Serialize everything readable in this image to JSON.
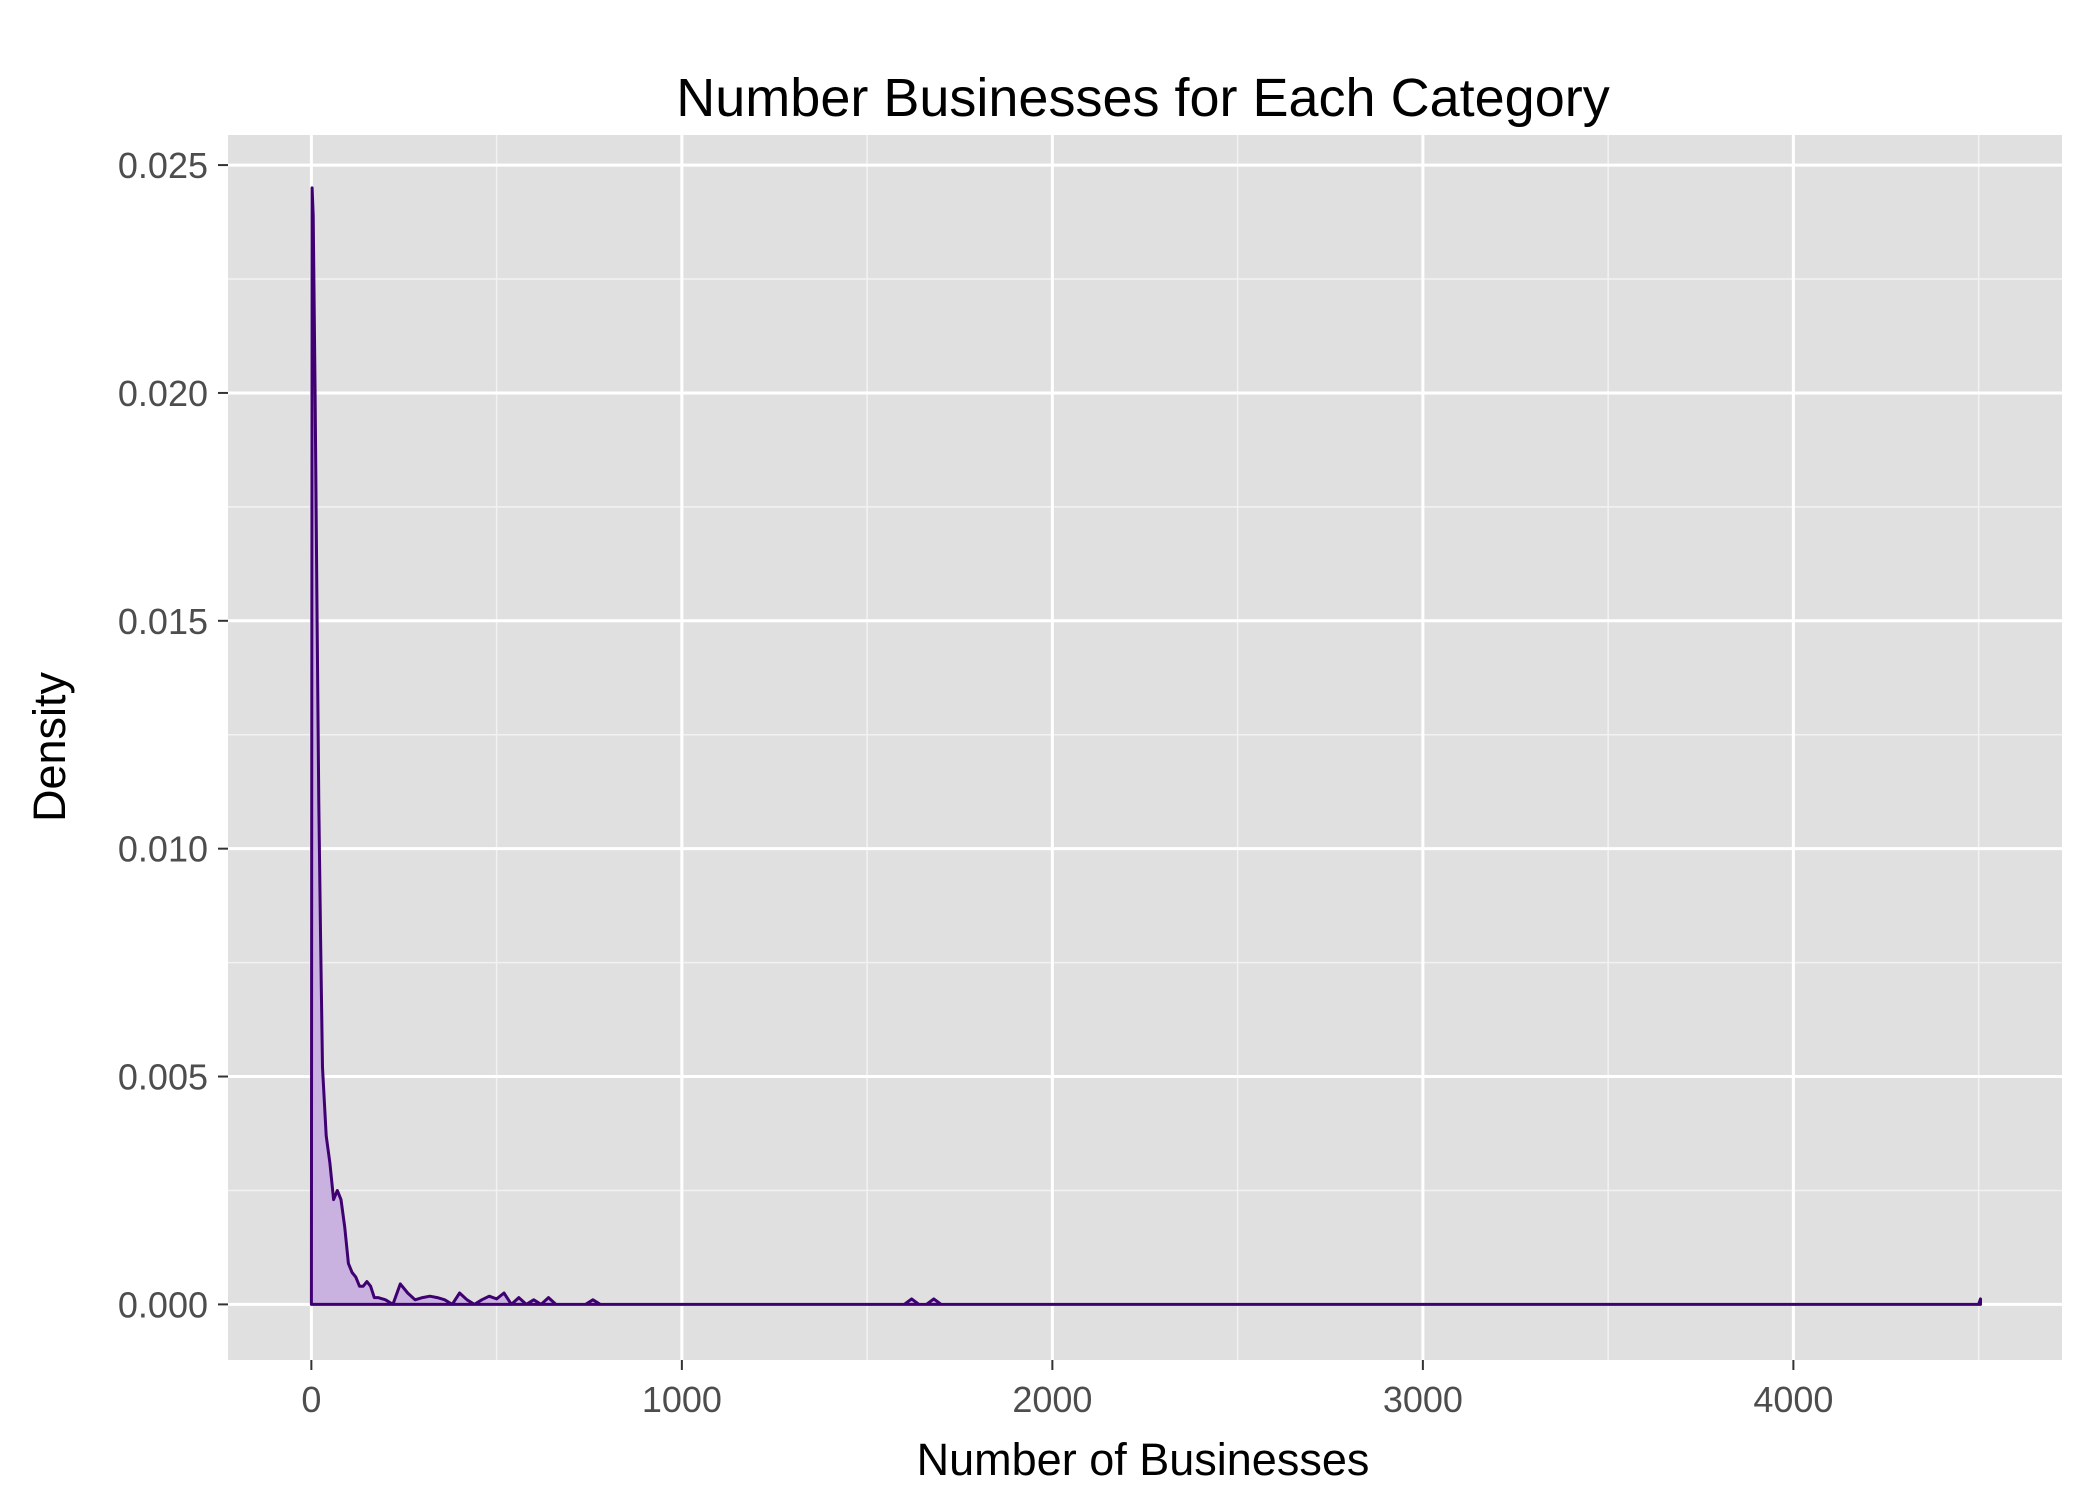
{
  "chart_data": {
    "type": "area",
    "title": "Number Businesses for Each Category",
    "xlabel": "Number of Businesses",
    "ylabel": "Density",
    "xlim": [
      -225,
      4725
    ],
    "ylim": [
      -0.00122,
      0.02566
    ],
    "x_ticks": [
      0,
      1000,
      2000,
      3000,
      4000
    ],
    "x_tick_labels": [
      "0",
      "1000",
      "2000",
      "3000",
      "4000"
    ],
    "y_ticks": [
      0,
      0.005,
      0.01,
      0.015,
      0.02,
      0.025
    ],
    "y_tick_labels": [
      "0.000",
      "0.005",
      "0.010",
      "0.015",
      "0.020",
      "0.025"
    ],
    "grid": true,
    "legend": "none",
    "colors": {
      "line": "#3f0071",
      "fill": "#c9b1e0",
      "panel": "#e0e0e0",
      "grid": "#ffffff"
    },
    "series": [
      {
        "x": [
          0,
          2,
          5,
          10,
          15,
          20,
          25,
          30,
          40,
          50,
          60,
          70,
          80,
          90,
          100,
          110,
          120,
          130,
          140,
          150,
          160,
          170,
          180,
          200,
          220,
          240,
          260,
          280,
          300,
          320,
          340,
          360,
          380,
          400,
          420,
          440,
          460,
          480,
          500,
          520,
          540,
          560,
          580,
          600,
          620,
          640,
          660,
          700,
          740,
          760,
          780,
          800,
          1000,
          1200,
          1400,
          1600,
          1620,
          1640,
          1660,
          1680,
          1700,
          1720,
          2000,
          3000,
          4000,
          4400,
          4480,
          4500,
          4505
        ],
        "y": [
          0,
          0.0245,
          0.0239,
          0.02,
          0.0155,
          0.011,
          0.008,
          0.0052,
          0.0037,
          0.0031,
          0.0023,
          0.0025,
          0.0023,
          0.0017,
          0.0009,
          0.0007,
          0.0006,
          0.0004,
          0.0004,
          0.0005,
          0.0004,
          0.00015,
          0.00015,
          0.0001,
          0.0,
          0.00045,
          0.00025,
          0.0001,
          0.00015,
          0.00018,
          0.00015,
          0.0001,
          0.0,
          0.00025,
          0.0001,
          0.0,
          0.0001,
          0.00018,
          0.00012,
          0.00025,
          0.0,
          0.00015,
          0.0,
          0.0001,
          0.0,
          0.00015,
          0.0,
          0.0,
          0.0,
          0.0001,
          0.0,
          0.0,
          0.0,
          0.0,
          0.0,
          0.0,
          0.00012,
          0.0,
          0.0,
          0.00012,
          0.0,
          0.0,
          0.0,
          0.0,
          0.0,
          0.0,
          0.0,
          0.0,
          0.00012
        ]
      }
    ]
  }
}
